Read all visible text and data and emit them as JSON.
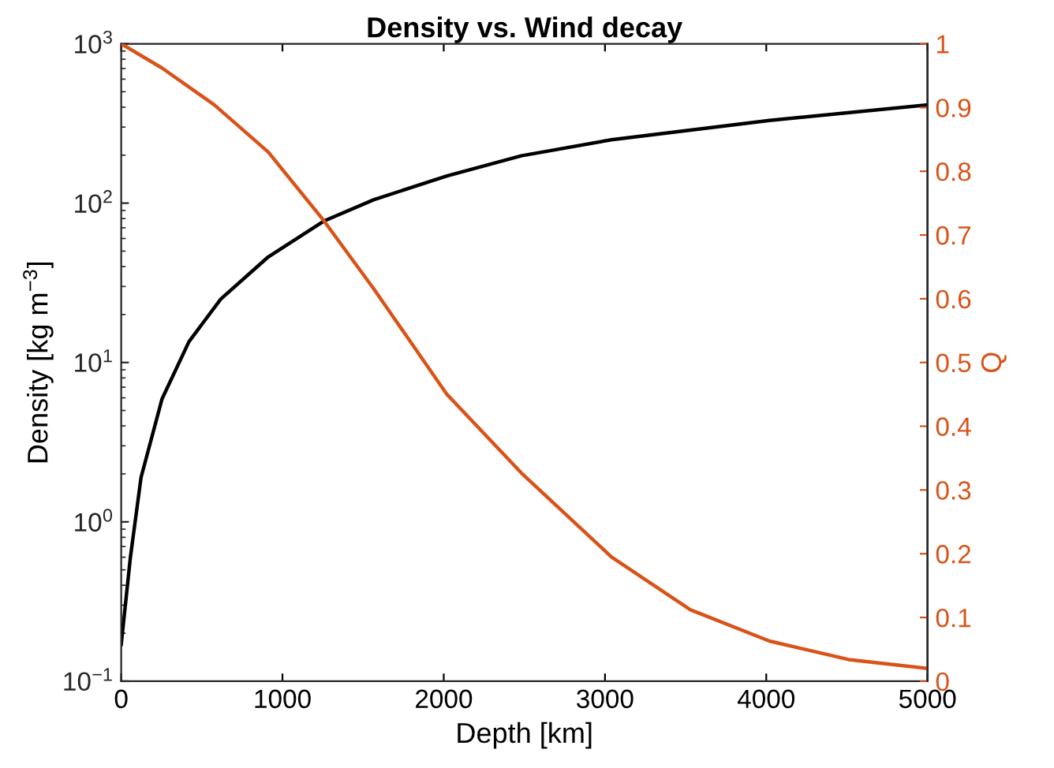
{
  "chart_data": {
    "type": "line",
    "title": "Density vs. Wind decay",
    "xlabel": "Depth [km]",
    "ylabel": "Density [kg m$^{−3}$]",
    "y2label": "Q",
    "series": [
      {
        "color": "#000000",
        "x": [
          0,
          57,
          123,
          253,
          420,
          617,
          912,
          1255,
          1565,
          2020,
          2480,
          3040,
          4020,
          5000
        ],
        "values": [
          0.17,
          0.6,
          1.9,
          5.9,
          13.5,
          25,
          46,
          77,
          105,
          148,
          198,
          250,
          330,
          414
        ]
      },
      {
        "color": "#d95319",
        "axis": "y2",
        "x": [
          0,
          253,
          578,
          912,
          1255,
          1565,
          2020,
          2480,
          3040,
          3530,
          4020,
          4510,
          5000
        ],
        "values": [
          1.0,
          0.962,
          0.904,
          0.83,
          0.723,
          0.616,
          0.45,
          0.327,
          0.195,
          0.112,
          0.063,
          0.034,
          0.02
        ]
      }
    ],
    "log": "y",
    "xlim": [
      0,
      5000
    ],
    "xticks": [
      0,
      1000,
      2000,
      3000,
      4000,
      5000
    ],
    "ylim": [
      0.1,
      1000
    ],
    "yticks": [
      {
        "value": 0.1,
        "label": "10$^{−1}$"
      },
      {
        "value": 1,
        "label": "10$^{0}$"
      },
      {
        "value": 10,
        "label": "10$^{1}$"
      },
      {
        "value": 100,
        "label": "10$^{2}$"
      },
      {
        "value": 1000,
        "label": "10$^{3}$"
      }
    ],
    "y2lim": [
      0,
      1
    ],
    "y2ticks": [
      0,
      0.1,
      0.2,
      0.3,
      0.4,
      0.5,
      0.6,
      0.7,
      0.8,
      0.9,
      1
    ],
    "grid": false,
    "legend": false,
    "marker": "none",
    "line_style": "solid"
  }
}
